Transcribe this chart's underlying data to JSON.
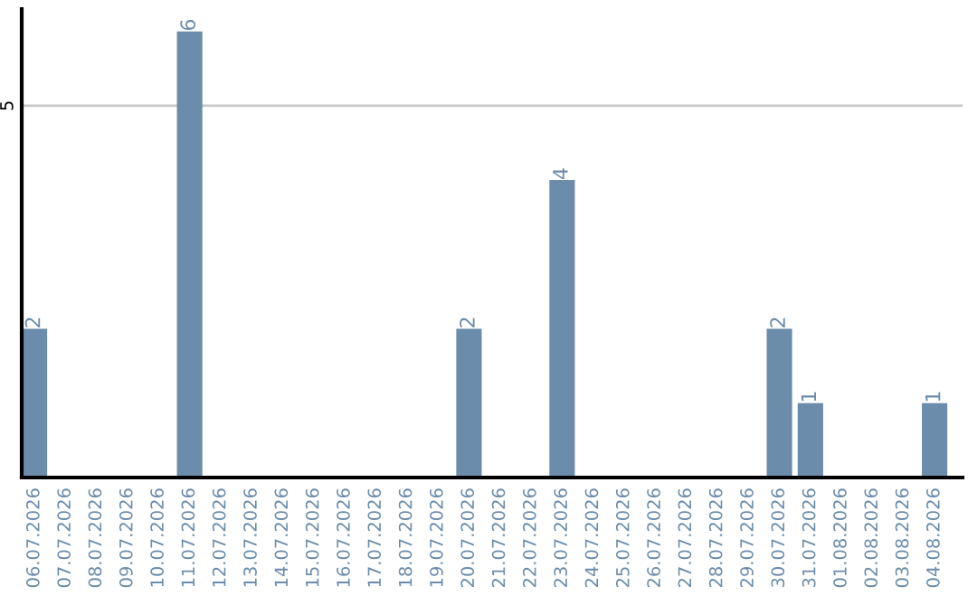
{
  "chart_data": {
    "type": "bar",
    "categories": [
      "06.07.2026",
      "07.07.2026",
      "08.07.2026",
      "09.07.2026",
      "10.07.2026",
      "11.07.2026",
      "12.07.2026",
      "13.07.2026",
      "14.07.2026",
      "15.07.2026",
      "16.07.2026",
      "17.07.2026",
      "18.07.2026",
      "19.07.2026",
      "20.07.2026",
      "21.07.2026",
      "22.07.2026",
      "23.07.2026",
      "24.07.2026",
      "25.07.2026",
      "26.07.2026",
      "27.07.2026",
      "28.07.2026",
      "29.07.2026",
      "30.07.2026",
      "31.07.2026",
      "01.08.2026",
      "02.08.2026",
      "03.08.2026",
      "04.08.2026"
    ],
    "values": [
      2,
      0,
      0,
      0,
      0,
      6,
      0,
      0,
      0,
      0,
      0,
      0,
      0,
      0,
      2,
      0,
      0,
      4,
      0,
      0,
      0,
      0,
      0,
      0,
      2,
      1,
      0,
      0,
      0,
      1
    ],
    "value_labels": [
      "2",
      null,
      null,
      null,
      null,
      "6",
      null,
      null,
      null,
      null,
      null,
      null,
      null,
      null,
      "2",
      null,
      null,
      "4",
      null,
      null,
      null,
      null,
      null,
      null,
      "2",
      "1",
      null,
      null,
      null,
      "1"
    ],
    "color": "#6b8caa",
    "ylim": [
      0,
      6.3
    ],
    "yticks": [
      5
    ],
    "grid": "y",
    "legend": false
  }
}
